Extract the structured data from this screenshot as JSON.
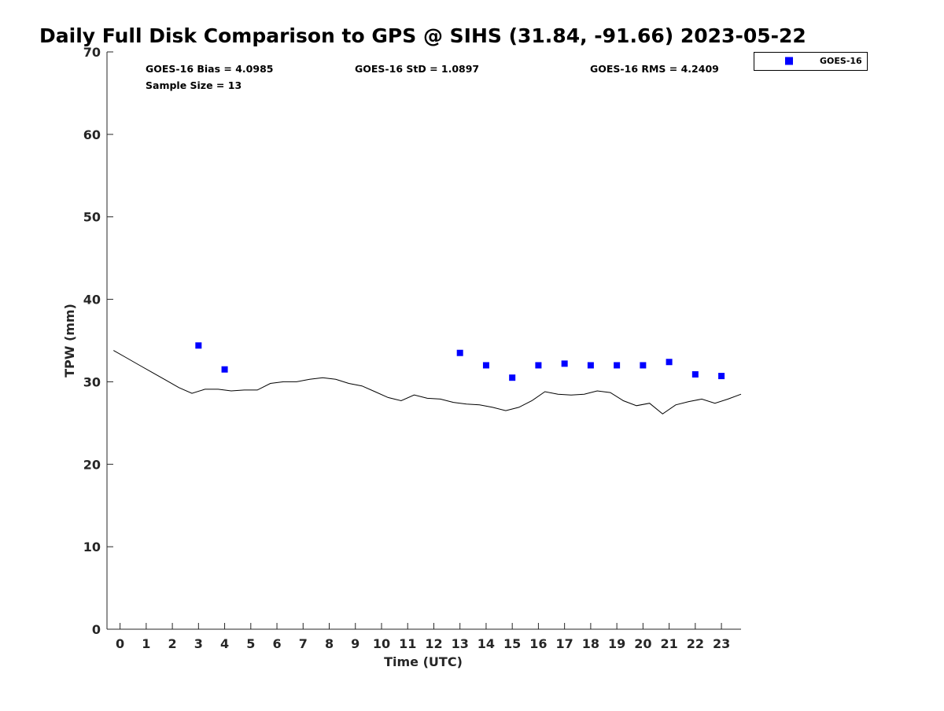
{
  "chart_data": {
    "type": "scatter",
    "title": "Daily Full Disk Comparison to GPS @ SIHS (31.84, -91.66) 2023-05-22",
    "xlabel": "Time (UTC)",
    "ylabel": "TPW (mm)",
    "xlim": [
      -0.5,
      23.75
    ],
    "ylim": [
      0,
      70
    ],
    "x_ticks": [
      0,
      1,
      2,
      3,
      4,
      5,
      6,
      7,
      8,
      9,
      10,
      11,
      12,
      13,
      14,
      15,
      16,
      17,
      18,
      19,
      20,
      21,
      22,
      23
    ],
    "y_ticks": [
      0,
      10,
      20,
      30,
      40,
      50,
      60,
      70
    ],
    "grid": false,
    "legend_position": "top-right",
    "series": [
      {
        "name": "GOES-16",
        "kind": "scatter",
        "marker": "square",
        "color": "#0000ff",
        "x": [
          3,
          4,
          13,
          14,
          15,
          16,
          17,
          18,
          19,
          20,
          21,
          22,
          23
        ],
        "y": [
          34.4,
          31.5,
          33.5,
          32.0,
          30.5,
          32.0,
          32.2,
          32.0,
          32.0,
          32.0,
          32.4,
          30.9,
          30.7
        ]
      },
      {
        "kind": "line",
        "color": "#000000",
        "x": [
          -0.25,
          0.25,
          0.75,
          1.25,
          1.75,
          2.25,
          2.75,
          3.25,
          3.75,
          4.25,
          4.75,
          5.25,
          5.75,
          6.25,
          6.75,
          7.25,
          7.75,
          8.25,
          8.75,
          9.25,
          9.75,
          10.25,
          10.75,
          11.25,
          11.75,
          12.25,
          12.75,
          13.25,
          13.75,
          14.25,
          14.75,
          15.25,
          15.75,
          16.25,
          16.75,
          17.25,
          17.75,
          18.25,
          18.75,
          19.25,
          19.75,
          20.25,
          20.75,
          21.25,
          21.75,
          22.25,
          22.75,
          23.25,
          23.75
        ],
        "y": [
          33.8,
          32.9,
          32.0,
          31.1,
          30.2,
          29.3,
          28.6,
          29.1,
          29.1,
          28.9,
          29.0,
          29.0,
          29.8,
          30.0,
          30.0,
          30.3,
          30.5,
          30.3,
          29.8,
          29.5,
          28.8,
          28.1,
          27.7,
          28.4,
          28.0,
          27.9,
          27.5,
          27.3,
          27.2,
          26.9,
          26.5,
          26.9,
          27.7,
          28.8,
          28.5,
          28.4,
          28.5,
          28.9,
          28.7,
          27.7,
          27.1,
          27.4,
          26.1,
          27.2,
          27.6,
          27.9,
          27.4,
          27.9,
          28.5
        ]
      }
    ],
    "stats": {
      "bias": "GOES-16 Bias = 4.0985",
      "std": "GOES-16 StD = 1.0897",
      "rms": "GOES-16 RMS = 4.2409",
      "sample": "Sample Size = 13"
    }
  }
}
